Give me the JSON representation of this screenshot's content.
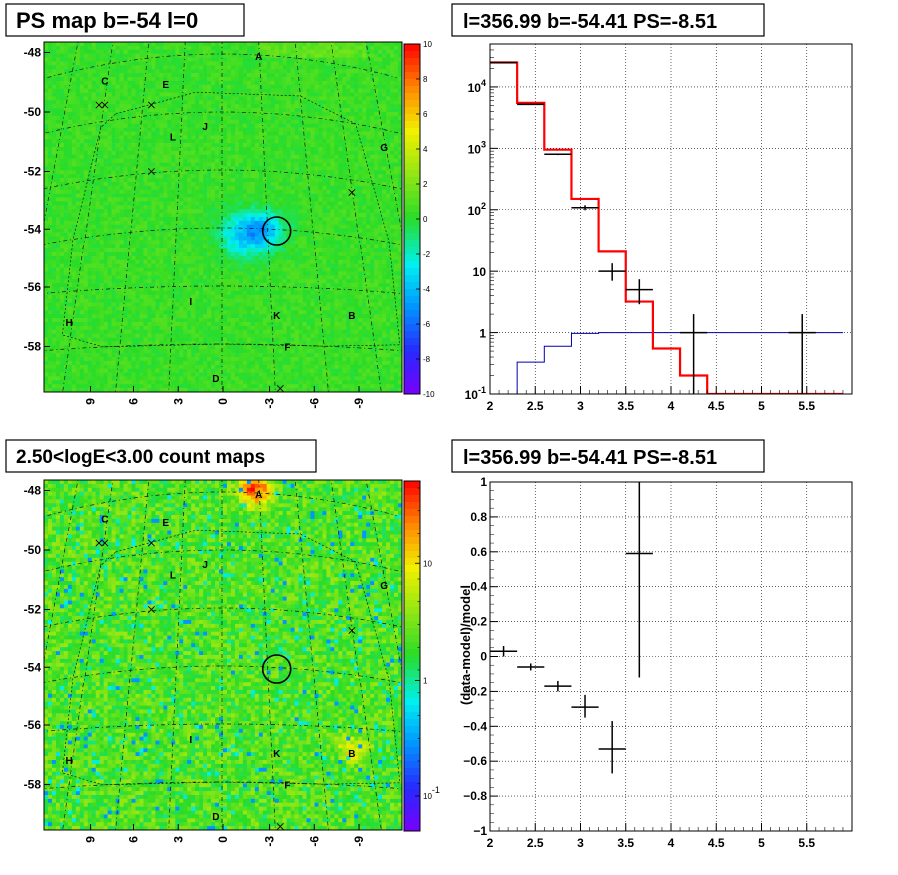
{
  "colors": {
    "map_green": "#2ed92e",
    "hist_model": "#ff0000",
    "hist_data": "#000000",
    "hist_bg": "#0000aa"
  },
  "panels": {
    "tl": {
      "title": "PS map b=-54 l=0",
      "y_ticks": [
        "-48",
        "-50",
        "-52",
        "-54",
        "-56",
        "-58"
      ],
      "x_ticks": [
        "9",
        "6",
        "3",
        "0",
        "-3",
        "-6",
        "-9"
      ],
      "colorbar_ticks": [
        "10",
        "8",
        "6",
        "4",
        "2",
        "0",
        "-2",
        "-4",
        "-6",
        "-8",
        "-10"
      ]
    },
    "tr": {
      "title": "l=356.99 b=-54.41 PS=-8.51"
    },
    "bl": {
      "title": "2.50<logE<3.00 count maps",
      "y_ticks": [
        "-48",
        "-50",
        "-52",
        "-54",
        "-56",
        "-58"
      ],
      "x_ticks": [
        "9",
        "6",
        "3",
        "0",
        "-3",
        "-6",
        "-9"
      ],
      "colorbar_ticks": [
        "10",
        "1"
      ],
      "colorbar_tick_low": "10",
      "colorbar_tick_low_exp": "-1"
    },
    "br": {
      "title": "l=356.99 b=-54.41 PS=-8.51",
      "ylabel": "(data-model)/model"
    }
  },
  "sources": [
    {
      "id": "A",
      "label": "A"
    },
    {
      "id": "B",
      "label": "B"
    },
    {
      "id": "C",
      "label": "C"
    },
    {
      "id": "D",
      "label": "D"
    },
    {
      "id": "E",
      "label": "E"
    },
    {
      "id": "F",
      "label": "F"
    },
    {
      "id": "G",
      "label": "G"
    },
    {
      "id": "H",
      "label": "H"
    },
    {
      "id": "I",
      "label": "I"
    },
    {
      "id": "J",
      "label": "J"
    },
    {
      "id": "K",
      "label": "K"
    },
    {
      "id": "L",
      "label": "L"
    }
  ],
  "chart_data": [
    {
      "type": "heatmap",
      "title": "PS map b=-54 l=0",
      "x_ticks": [
        9,
        6,
        3,
        0,
        -3,
        -6,
        -9
      ],
      "y_ticks": [
        -48,
        -50,
        -52,
        -54,
        -56,
        -58
      ],
      "zlim": [
        -10,
        10
      ],
      "circle_at": {
        "l": -3,
        "b": -54
      },
      "description": "mostly near 0 (green), deficit around l=-3..1, b=-54..-55"
    },
    {
      "type": "line",
      "title": "l=356.99 b=-54.41 PS=-8.51",
      "yscale": "log",
      "xlim": [
        2,
        6
      ],
      "ylim": [
        0.1,
        50000
      ],
      "x_ticks": [
        "2",
        "2.5",
        "3",
        "3.5",
        "4",
        "4.5",
        "5",
        "5.5"
      ],
      "y_ticks": [
        {
          "base": "10",
          "exp": "4"
        },
        {
          "base": "10",
          "exp": "3"
        },
        {
          "base": "10",
          "exp": "2"
        },
        {
          "base": "10",
          "exp": ""
        },
        {
          "base": "1",
          "exp": ""
        },
        {
          "base": "10",
          "exp": "-1"
        }
      ],
      "bin_edges": [
        2.0,
        2.3,
        2.6,
        2.9,
        3.2,
        3.5,
        3.8,
        4.1,
        4.4,
        4.7,
        5.0,
        5.3,
        5.6,
        5.9
      ],
      "series": [
        {
          "role": "model",
          "values": [
            25000,
            5500,
            950,
            150,
            21,
            3.2,
            0.55,
            0.2,
            0.1,
            0.1,
            0.1,
            0.1,
            0.1
          ]
        },
        {
          "role": "background",
          "values": [
            0.1,
            0.33,
            0.6,
            0.97,
            1,
            1,
            1,
            1,
            1,
            1,
            1,
            1,
            1
          ]
        }
      ],
      "data_points": [
        {
          "x": 2.15,
          "y": 25000,
          "ylo": 24800,
          "yhi": 25200
        },
        {
          "x": 2.45,
          "y": 5200,
          "ylo": 5100,
          "yhi": 5300
        },
        {
          "x": 2.75,
          "y": 800,
          "ylo": 775,
          "yhi": 825
        },
        {
          "x": 3.05,
          "y": 108,
          "ylo": 98,
          "yhi": 118
        },
        {
          "x": 3.35,
          "y": 10,
          "ylo": 7,
          "yhi": 13.5
        },
        {
          "x": 3.65,
          "y": 5,
          "ylo": 2.9,
          "yhi": 7.4
        },
        {
          "x": 4.25,
          "y": 1,
          "ylo": 0.1,
          "yhi": 2
        },
        {
          "x": 5.45,
          "y": 1,
          "ylo": 0.1,
          "yhi": 2
        }
      ]
    },
    {
      "type": "heatmap",
      "title": "2.50<logE<3.00 count maps",
      "x_ticks": [
        9,
        6,
        3,
        0,
        -3,
        -6,
        -9
      ],
      "y_ticks": [
        -48,
        -50,
        -52,
        -54,
        -56,
        -58
      ],
      "zscale": "log",
      "zlim": [
        0.05,
        30
      ],
      "hotspots": [
        "A",
        "B"
      ]
    },
    {
      "type": "scatter",
      "title": "l=356.99 b=-54.41 PS=-8.51",
      "ylabel": "(data-model)/model",
      "xlim": [
        2,
        6
      ],
      "ylim": [
        -1,
        1
      ],
      "x_ticks": [
        "2",
        "2.5",
        "3",
        "3.5",
        "4",
        "4.5",
        "5",
        "5.5"
      ],
      "y_ticks": [
        "1",
        "0.8",
        "0.6",
        "0.4",
        "0.2",
        "0",
        "−0.2",
        "−0.4",
        "−0.6",
        "−0.8",
        "−1"
      ],
      "points": [
        {
          "x": 2.15,
          "y": 0.03,
          "ylo": 0.0,
          "yhi": 0.06
        },
        {
          "x": 2.45,
          "y": -0.06,
          "ylo": -0.08,
          "yhi": -0.04
        },
        {
          "x": 2.75,
          "y": -0.17,
          "ylo": -0.2,
          "yhi": -0.14
        },
        {
          "x": 3.05,
          "y": -0.29,
          "ylo": -0.35,
          "yhi": -0.22
        },
        {
          "x": 3.35,
          "y": -0.53,
          "ylo": -0.67,
          "yhi": -0.37
        },
        {
          "x": 3.65,
          "y": 0.59,
          "ylo": -0.12,
          "yhi": 1.0
        }
      ]
    }
  ]
}
